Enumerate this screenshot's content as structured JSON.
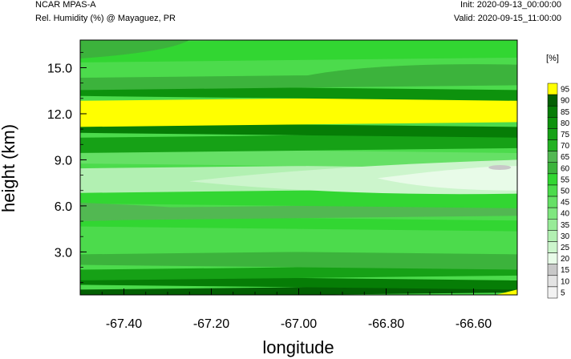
{
  "header": {
    "title": "NCAR MPAS-A",
    "subtitle": "Rel. Humidity (%) @ Mayaguez, PR",
    "init": "Init: 2020-09-13_00:00:00",
    "valid": "Valid: 2020-09-15_11:00:00"
  },
  "chart_data": {
    "type": "heatmap",
    "title": "Rel. Humidity (%) @ Mayaguez, PR",
    "xlabel": "longitude",
    "ylabel": "height (km)",
    "xlim": [
      -67.5,
      -66.5
    ],
    "ylim": [
      0.2,
      16.8
    ],
    "x_ticks": [
      -67.4,
      -67.2,
      -67.0,
      -66.8,
      -66.6
    ],
    "x_tick_labels": [
      "-67.40",
      "-67.20",
      "-67.00",
      "-66.80",
      "-66.60"
    ],
    "y_ticks": [
      3.0,
      6.0,
      9.0,
      12.0,
      15.0
    ],
    "y_tick_labels": [
      "3.0",
      "6.0",
      "9.0",
      "12.0",
      "15.0"
    ],
    "colorbar": {
      "unit": "[%]",
      "levels": [
        5,
        10,
        15,
        20,
        25,
        30,
        35,
        40,
        45,
        50,
        55,
        60,
        65,
        70,
        75,
        80,
        85,
        90,
        95
      ],
      "colors": [
        "#f2f2f2",
        "#e3e3e3",
        "#c8c8c8",
        "#e8fbe8",
        "#ccf5cc",
        "#b2f0b2",
        "#98eb98",
        "#7fe67f",
        "#66e066",
        "#4cdb4c",
        "#32d632",
        "#3cb33c",
        "#52b852",
        "#23b123",
        "#16a116",
        "#0d920d",
        "#067d06",
        "#036003",
        "#ffff00"
      ]
    },
    "bands": [
      {
        "z0": 0.2,
        "z1": 0.7,
        "rh": 90
      },
      {
        "z0": 0.7,
        "z1": 1.3,
        "rh": 85
      },
      {
        "z0": 1.3,
        "z1": 2.0,
        "rh": 75
      },
      {
        "z0": 2.0,
        "z1": 3.0,
        "rh": 60
      },
      {
        "z0": 3.0,
        "z1": 4.5,
        "rh": 50
      },
      {
        "z0": 4.5,
        "z1": 5.2,
        "rh": 55
      },
      {
        "z0": 5.2,
        "z1": 6.0,
        "rh": 65
      },
      {
        "z0": 6.0,
        "z1": 7.0,
        "rh": 55
      },
      {
        "z0": 7.0,
        "z1": 8.6,
        "rh": 30
      },
      {
        "z0": 8.6,
        "z1": 9.6,
        "rh": 45
      },
      {
        "z0": 9.6,
        "z1": 10.6,
        "rh": 75
      },
      {
        "z0": 10.6,
        "z1": 11.3,
        "rh": 85
      },
      {
        "z0": 11.3,
        "z1": 13.0,
        "rh": 95
      },
      {
        "z0": 13.0,
        "z1": 13.7,
        "rh": 80
      },
      {
        "z0": 13.7,
        "z1": 14.5,
        "rh": 60
      },
      {
        "z0": 14.5,
        "z1": 15.5,
        "rh": 50
      },
      {
        "z0": 15.5,
        "z1": 16.8,
        "rh": 55
      }
    ]
  }
}
